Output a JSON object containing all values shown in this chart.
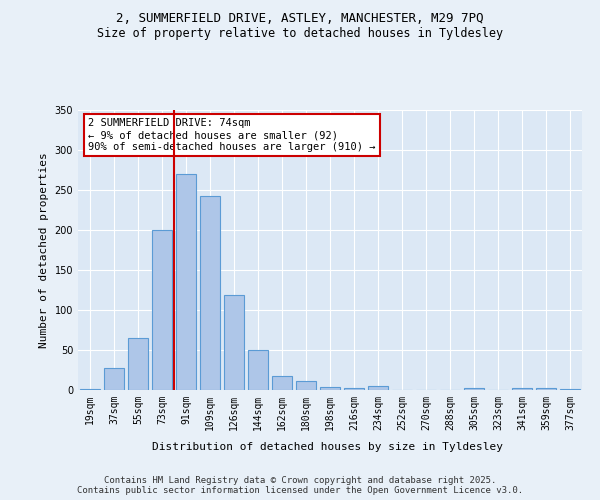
{
  "title_line1": "2, SUMMERFIELD DRIVE, ASTLEY, MANCHESTER, M29 7PQ",
  "title_line2": "Size of property relative to detached houses in Tyldesley",
  "xlabel": "Distribution of detached houses by size in Tyldesley",
  "ylabel": "Number of detached properties",
  "categories": [
    "19sqm",
    "37sqm",
    "55sqm",
    "73sqm",
    "91sqm",
    "109sqm",
    "126sqm",
    "144sqm",
    "162sqm",
    "180sqm",
    "198sqm",
    "216sqm",
    "234sqm",
    "252sqm",
    "270sqm",
    "288sqm",
    "305sqm",
    "323sqm",
    "341sqm",
    "359sqm",
    "377sqm"
  ],
  "values": [
    1,
    28,
    65,
    200,
    270,
    242,
    119,
    50,
    18,
    11,
    4,
    3,
    5,
    0,
    0,
    0,
    2,
    0,
    3,
    2,
    1
  ],
  "bar_color": "#aec6e8",
  "bar_edge_color": "#5b9bd5",
  "vline_x": 3,
  "vline_color": "#cc0000",
  "annotation_text": "2 SUMMERFIELD DRIVE: 74sqm\n← 9% of detached houses are smaller (92)\n90% of semi-detached houses are larger (910) →",
  "annotation_box_color": "#ffffff",
  "annotation_box_edge": "#cc0000",
  "ylim": [
    0,
    350
  ],
  "yticks": [
    0,
    50,
    100,
    150,
    200,
    250,
    300,
    350
  ],
  "bg_color": "#e8f0f8",
  "plot_bg_color": "#dce8f5",
  "footer": "Contains HM Land Registry data © Crown copyright and database right 2025.\nContains public sector information licensed under the Open Government Licence v3.0.",
  "title_fontsize": 9,
  "subtitle_fontsize": 8.5,
  "axis_label_fontsize": 8,
  "tick_fontsize": 7,
  "annotation_fontsize": 7.5,
  "footer_fontsize": 6.5
}
